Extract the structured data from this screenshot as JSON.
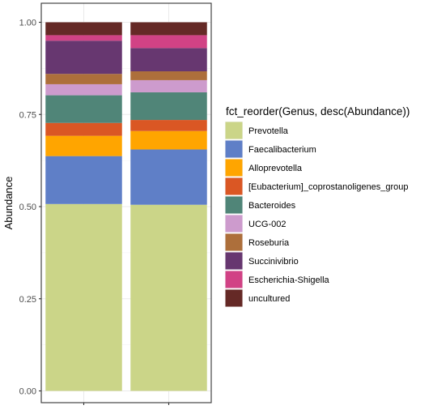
{
  "chart_data": {
    "type": "bar",
    "stacked": true,
    "categories": [
      "",
      ""
    ],
    "xlabel": "",
    "ylabel": "Abundance",
    "ylim": [
      0,
      1
    ],
    "yticks": [
      "0.00",
      "0.25",
      "0.50",
      "0.75",
      "1.00"
    ],
    "grid": true,
    "legend_position": "right",
    "legend_title": "fct_reorder(Genus, desc(Abundance))",
    "series": [
      {
        "name": "Prevotella",
        "color": "#CBD588",
        "values": [
          0.507,
          0.505
        ]
      },
      {
        "name": "Faecalibacterium",
        "color": "#5F7FC7",
        "values": [
          0.13,
          0.15
        ]
      },
      {
        "name": "Alloprevotella",
        "color": "#FFA500",
        "values": [
          0.055,
          0.05
        ]
      },
      {
        "name": "[Eubacterium]_coprostanoligenes_group",
        "color": "#DA5724",
        "values": [
          0.035,
          0.03
        ]
      },
      {
        "name": "Bacteroides",
        "color": "#508578",
        "values": [
          0.075,
          0.075
        ]
      },
      {
        "name": "UCG-002",
        "color": "#CD9BCD",
        "values": [
          0.03,
          0.033
        ]
      },
      {
        "name": "Roseburia",
        "color": "#AD6F3B",
        "values": [
          0.028,
          0.024
        ]
      },
      {
        "name": "Succinivibrio",
        "color": "#673770",
        "values": [
          0.09,
          0.063
        ]
      },
      {
        "name": "Escherichia-Shigella",
        "color": "#D14285",
        "values": [
          0.015,
          0.035
        ]
      },
      {
        "name": "uncultured",
        "color": "#652926",
        "values": [
          0.035,
          0.035
        ]
      }
    ]
  }
}
